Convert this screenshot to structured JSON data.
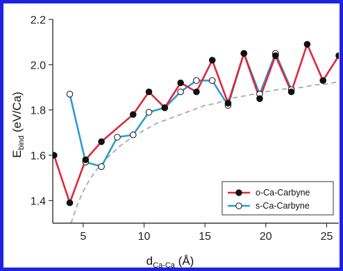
{
  "chart_data": {
    "type": "line",
    "xlabel": {
      "main": "d",
      "sub": "Ca-Ca",
      "unit": " (Å)"
    },
    "ylabel": {
      "main": "E",
      "sub": "bind",
      "unit": " (eV/Ca)"
    },
    "xlim": [
      2.5,
      26
    ],
    "ylim": [
      1.3,
      2.2
    ],
    "x_ticks": [
      5,
      10,
      15,
      20,
      25
    ],
    "y_ticks": [
      1.4,
      1.6,
      1.8,
      2.0,
      2.2
    ],
    "y_tick_labels": [
      "1.4",
      "1.6",
      "1.8",
      "2.0",
      "2.2"
    ],
    "legend_position": "bottom-right",
    "series": [
      {
        "name": "o-Ca-Carbyne",
        "line_color": "#e0263a",
        "marker": "filled-circle",
        "marker_color": "#111111",
        "x": [
          2.6,
          3.9,
          5.2,
          6.5,
          9.1,
          10.4,
          11.7,
          13.0,
          14.3,
          15.6,
          16.9,
          18.2,
          19.5,
          20.8,
          22.1,
          23.4,
          24.7,
          26.0
        ],
        "y": [
          1.6,
          1.39,
          1.58,
          1.66,
          1.78,
          1.88,
          1.81,
          1.92,
          1.88,
          2.02,
          1.83,
          2.05,
          1.85,
          2.04,
          1.88,
          2.09,
          1.93,
          2.04
        ]
      },
      {
        "name": "s-Ca-Carbyne",
        "line_color": "#2c9bd4",
        "marker": "open-circle",
        "marker_color": "#111111",
        "x": [
          3.9,
          5.2,
          6.5,
          7.8,
          9.1,
          10.4,
          11.7,
          13.0,
          14.3,
          15.6,
          16.9,
          18.2,
          19.5,
          20.8,
          22.1
        ],
        "y": [
          1.87,
          1.57,
          1.55,
          1.68,
          1.69,
          1.79,
          1.81,
          1.88,
          1.93,
          1.93,
          1.82,
          2.05,
          1.87,
          2.05,
          1.89
        ]
      }
    ],
    "fit_curve": {
      "style": "dashed",
      "color": "#a8a8a8",
      "x": [
        4.0,
        4.5,
        5.0,
        5.5,
        6.0,
        7.0,
        8.0,
        9.0,
        10.0,
        11.0,
        12.0,
        13.0,
        14.0,
        15.0,
        16.0,
        17.0,
        18.0,
        19.0,
        20.0,
        21.0,
        22.0,
        23.0,
        24.0,
        25.0,
        26.0
      ],
      "y": [
        1.3,
        1.38,
        1.44,
        1.49,
        1.53,
        1.59,
        1.64,
        1.68,
        1.71,
        1.74,
        1.76,
        1.78,
        1.8,
        1.82,
        1.83,
        1.85,
        1.86,
        1.87,
        1.88,
        1.89,
        1.895,
        1.9,
        1.91,
        1.915,
        1.925
      ]
    }
  }
}
